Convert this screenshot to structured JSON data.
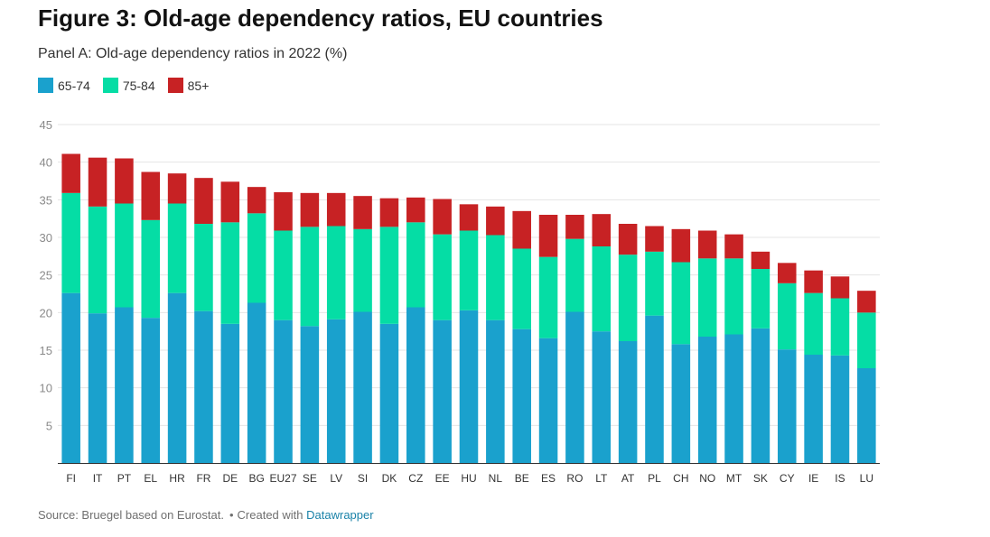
{
  "title": "Figure 3: Old-age dependency ratios, EU countries",
  "subtitle": "Panel A: Old-age dependency ratios in 2022 (%)",
  "footer": {
    "source": "Source: Bruegel based on Eurostat.",
    "created_with": "Created with",
    "tool": "Datawrapper"
  },
  "colors": {
    "65-74": "#1aa1cd",
    "75-84": "#05dda5",
    "85+": "#c72224"
  },
  "chart_data": {
    "type": "bar",
    "stacked": true,
    "categories": [
      "FI",
      "IT",
      "PT",
      "EL",
      "HR",
      "FR",
      "DE",
      "BG",
      "EU27",
      "SE",
      "LV",
      "SI",
      "DK",
      "CZ",
      "EE",
      "HU",
      "NL",
      "BE",
      "ES",
      "RO",
      "LT",
      "AT",
      "PL",
      "CH",
      "NO",
      "MT",
      "SK",
      "CY",
      "IE",
      "IS",
      "LU"
    ],
    "series": [
      {
        "name": "65-74",
        "values": [
          22.6,
          19.9,
          20.7,
          19.3,
          22.6,
          20.2,
          18.5,
          21.3,
          19.0,
          18.2,
          19.1,
          20.1,
          18.5,
          20.7,
          19.0,
          20.3,
          19.0,
          17.8,
          16.6,
          20.1,
          17.5,
          16.2,
          19.6,
          15.8,
          16.8,
          17.1,
          17.9,
          15.1,
          14.4,
          14.3,
          12.6
        ]
      },
      {
        "name": "75-84",
        "values": [
          13.3,
          14.2,
          13.8,
          13.0,
          11.9,
          11.6,
          13.5,
          11.9,
          11.9,
          13.2,
          12.4,
          11.0,
          12.9,
          11.3,
          11.4,
          10.6,
          11.3,
          10.7,
          10.8,
          9.7,
          11.3,
          11.5,
          8.5,
          10.9,
          10.4,
          10.1,
          7.9,
          8.8,
          8.2,
          7.6,
          7.4
        ]
      },
      {
        "name": "85+",
        "values": [
          5.2,
          6.5,
          6.0,
          6.4,
          4.0,
          6.1,
          5.4,
          3.5,
          5.1,
          4.5,
          4.4,
          4.4,
          3.8,
          3.3,
          4.7,
          3.5,
          3.8,
          5.0,
          5.6,
          3.2,
          4.3,
          4.1,
          3.4,
          4.4,
          3.7,
          3.2,
          2.3,
          2.7,
          3.0,
          2.9,
          2.9
        ]
      }
    ],
    "ylim": [
      0,
      45
    ],
    "yticks": [
      5,
      10,
      15,
      20,
      25,
      30,
      35,
      40,
      45
    ],
    "grid": true,
    "legend_position": "top-left",
    "xlabel": "",
    "ylabel": ""
  }
}
